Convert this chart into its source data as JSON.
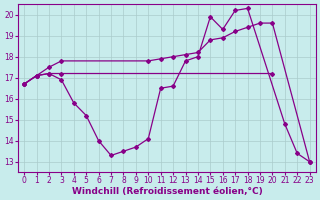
{
  "bg_color": "#c8ecec",
  "line_color": "#880088",
  "grid_color": "#aacccc",
  "xlabel": "Windchill (Refroidissement éolien,°C)",
  "ylim": [
    12.5,
    20.5
  ],
  "xlim": [
    -0.5,
    23.5
  ],
  "yticks": [
    13,
    14,
    15,
    16,
    17,
    18,
    19,
    20
  ],
  "xticks": [
    0,
    1,
    2,
    3,
    4,
    5,
    6,
    7,
    8,
    9,
    10,
    11,
    12,
    13,
    14,
    15,
    16,
    17,
    18,
    19,
    20,
    21,
    22,
    23
  ],
  "series1_x": [
    0,
    1,
    2,
    3,
    20
  ],
  "series1_y": [
    16.7,
    17.1,
    17.2,
    17.2,
    17.2
  ],
  "series2_x": [
    0,
    1,
    2,
    3,
    4,
    5,
    6,
    7,
    8,
    9,
    10,
    11,
    12,
    13,
    14,
    15,
    16,
    17,
    18,
    21,
    22,
    23
  ],
  "series2_y": [
    16.7,
    17.1,
    17.2,
    16.9,
    15.8,
    15.2,
    14.0,
    13.3,
    13.5,
    13.7,
    14.1,
    16.5,
    16.6,
    17.8,
    18.0,
    19.9,
    19.3,
    20.2,
    20.3,
    14.8,
    13.4,
    13.0
  ],
  "series3_x": [
    0,
    1,
    2,
    3,
    10,
    11,
    12,
    13,
    14,
    15,
    16,
    17,
    18,
    19,
    20,
    23
  ],
  "series3_y": [
    16.7,
    17.1,
    17.5,
    17.8,
    17.8,
    17.9,
    18.0,
    18.1,
    18.2,
    18.8,
    18.9,
    19.2,
    19.4,
    19.6,
    19.6,
    13.0
  ],
  "marker": "D",
  "markersize": 2.0,
  "linewidth": 0.9,
  "tick_fontsize": 5.5,
  "xlabel_fontsize": 6.5
}
